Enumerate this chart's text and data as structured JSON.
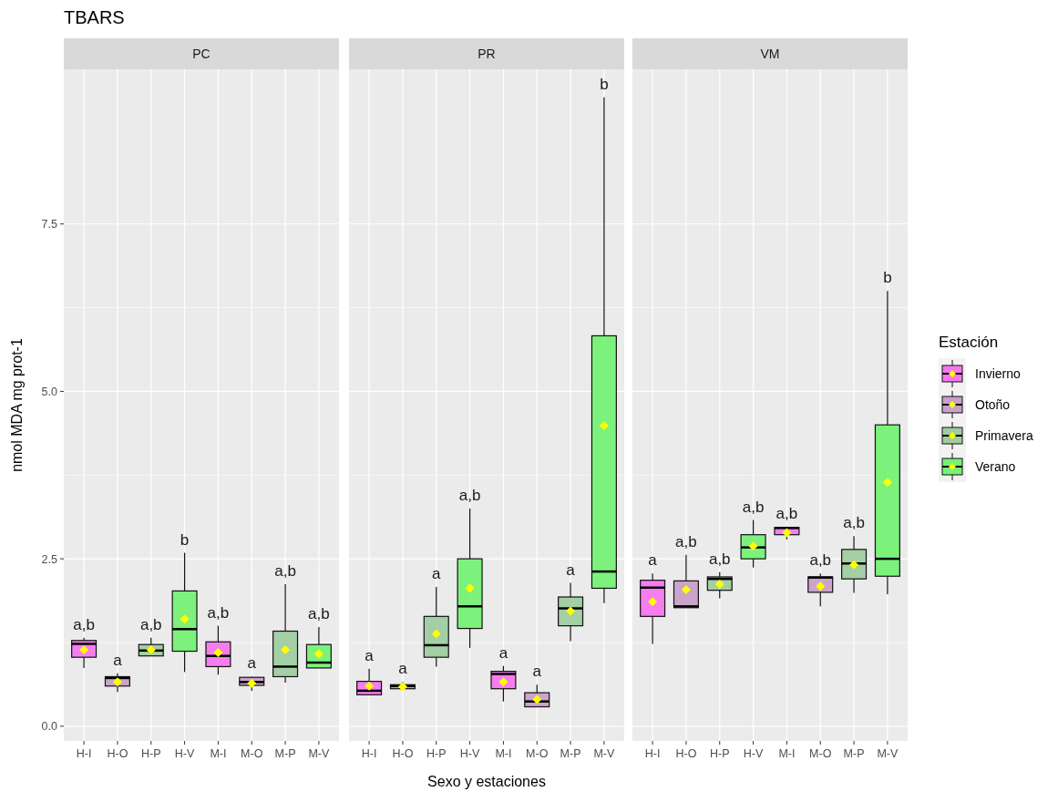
{
  "chart_data": [
    {
      "type": "box",
      "title": "TBARS",
      "subtitle": "PC",
      "ylabel": "nmol MDA mg prot-1",
      "categories": [
        "H-I",
        "H-O",
        "H-P",
        "H-V",
        "M-I",
        "M-O",
        "M-P",
        "M-V"
      ],
      "ylim": [
        -0.22,
        9.81
      ],
      "yticks": [
        {
          "value": 0,
          "label": "0.0"
        },
        {
          "value": 2.5,
          "label": "2.5"
        },
        {
          "value": 5,
          "label": "5.0"
        },
        {
          "value": 7.5,
          "label": "7.5"
        }
      ],
      "grid": true,
      "legend": false,
      "series": [
        {
          "color": "#f577ef",
          "boxes": [
            {
              "low": 0.87,
              "q1": 1.03,
              "median": 1.23,
              "q3": 1.28,
              "high": 1.32,
              "mean": 1.14
            },
            null,
            null,
            null,
            {
              "low": 0.77,
              "q1": 0.89,
              "median": 1.05,
              "q3": 1.26,
              "high": 1.5,
              "mean": 1.1
            },
            null,
            null,
            null
          ]
        },
        {
          "color": "#c9a0c9",
          "boxes": [
            null,
            {
              "low": 0.51,
              "q1": 0.6,
              "median": 0.72,
              "q3": 0.74,
              "high": 0.79,
              "mean": 0.66
            },
            null,
            null,
            null,
            {
              "low": 0.53,
              "q1": 0.61,
              "median": 0.66,
              "q3": 0.73,
              "high": 0.74,
              "mean": 0.64
            },
            null,
            null
          ]
        },
        {
          "color": "#a0cca0",
          "boxes": [
            null,
            null,
            {
              "low": 1.01,
              "q1": 1.05,
              "median": 1.13,
              "q3": 1.22,
              "high": 1.32,
              "mean": 1.14
            },
            null,
            null,
            null,
            {
              "low": 0.65,
              "q1": 0.74,
              "median": 0.89,
              "q3": 1.42,
              "high": 2.12,
              "mean": 1.14
            },
            null
          ]
        },
        {
          "color": "#76f276",
          "boxes": [
            null,
            null,
            null,
            {
              "low": 0.81,
              "q1": 1.12,
              "median": 1.45,
              "q3": 2.02,
              "high": 2.59,
              "mean": 1.6
            },
            null,
            null,
            null,
            {
              "low": 0.84,
              "q1": 0.87,
              "median": 0.95,
              "q3": 1.22,
              "high": 1.48,
              "mean": 1.08
            }
          ]
        }
      ],
      "annotations": [
        "a,b",
        "a",
        "a,b",
        "b",
        "a,b",
        "a",
        "a,b",
        "a,b"
      ]
    },
    {
      "type": "box",
      "subtitle": "PR",
      "xlabel": "Sexo y estaciones",
      "categories": [
        "H-I",
        "H-O",
        "H-P",
        "H-V",
        "M-I",
        "M-O",
        "M-P",
        "M-V"
      ],
      "ylim": [
        -0.22,
        9.81
      ],
      "yticks": [
        0,
        2.5,
        5,
        7.5
      ],
      "grid": true,
      "legend": false,
      "tick_labels": "x",
      "series": [
        {
          "color": "#f577ef",
          "boxes": [
            {
              "low": 0.45,
              "q1": 0.47,
              "median": 0.53,
              "q3": 0.67,
              "high": 0.86,
              "mean": 0.6
            },
            null,
            null,
            null,
            {
              "low": 0.37,
              "q1": 0.56,
              "median": 0.78,
              "q3": 0.82,
              "high": 0.9,
              "mean": 0.66
            },
            null,
            null,
            null
          ]
        },
        {
          "color": "#c9a0c9",
          "boxes": [
            null,
            {
              "low": 0.55,
              "q1": 0.56,
              "median": 0.6,
              "q3": 0.62,
              "high": 0.66,
              "mean": 0.59
            },
            null,
            null,
            null,
            {
              "low": 0.25,
              "q1": 0.29,
              "median": 0.37,
              "q3": 0.5,
              "high": 0.62,
              "mean": 0.4
            },
            null,
            null
          ]
        },
        {
          "color": "#a0cca0",
          "boxes": [
            null,
            null,
            {
              "low": 0.89,
              "q1": 1.03,
              "median": 1.21,
              "q3": 1.64,
              "high": 2.08,
              "mean": 1.38
            },
            null,
            null,
            null,
            {
              "low": 1.27,
              "q1": 1.5,
              "median": 1.76,
              "q3": 1.93,
              "high": 2.14,
              "mean": 1.72
            },
            null
          ]
        },
        {
          "color": "#76f276",
          "boxes": [
            null,
            null,
            null,
            {
              "low": 1.17,
              "q1": 1.46,
              "median": 1.79,
              "q3": 2.5,
              "high": 3.25,
              "mean": 2.06
            },
            null,
            null,
            null,
            {
              "low": 1.84,
              "q1": 2.06,
              "median": 2.31,
              "q3": 5.83,
              "high": 9.39,
              "mean": 4.49
            }
          ]
        }
      ],
      "annotations": [
        "a",
        "a",
        "a",
        "a,b",
        "a",
        "a",
        "a",
        "b"
      ]
    },
    {
      "type": "box",
      "subtitle": "VM",
      "legend_title": "Estación",
      "legend": "right",
      "categories": [
        "H-I",
        "H-O",
        "H-P",
        "H-V",
        "M-I",
        "M-O",
        "M-P",
        "M-V"
      ],
      "ylim": [
        -0.22,
        9.81
      ],
      "yticks": [
        0,
        2.5,
        5,
        7.5
      ],
      "grid": true,
      "tick_labels": "x",
      "series": [
        {
          "name": "Invierno",
          "color": "#f577ef",
          "boxes": [
            {
              "low": 1.23,
              "q1": 1.64,
              "median": 2.07,
              "q3": 2.18,
              "high": 2.28,
              "mean": 1.86
            },
            null,
            null,
            null,
            {
              "low": 2.79,
              "q1": 2.86,
              "median": 2.96,
              "q3": 2.97,
              "high": 2.98,
              "mean": 2.89
            },
            null,
            null,
            null
          ]
        },
        {
          "name": "Otoño",
          "color": "#c9a0c9",
          "boxes": [
            null,
            {
              "low": 1.77,
              "q1": 1.77,
              "median": 1.79,
              "q3": 2.17,
              "high": 2.56,
              "mean": 2.04
            },
            null,
            null,
            null,
            {
              "low": 1.79,
              "q1": 2.0,
              "median": 2.22,
              "q3": 2.23,
              "high": 2.28,
              "mean": 2.09
            },
            null,
            null
          ]
        },
        {
          "name": "Primavera",
          "color": "#a0cca0",
          "boxes": [
            null,
            null,
            {
              "low": 1.91,
              "q1": 2.03,
              "median": 2.2,
              "q3": 2.23,
              "high": 2.3,
              "mean": 2.12
            },
            null,
            null,
            null,
            {
              "low": 1.99,
              "q1": 2.2,
              "median": 2.43,
              "q3": 2.64,
              "high": 2.84,
              "mean": 2.41
            },
            null
          ]
        },
        {
          "name": "Verano",
          "color": "#76f276",
          "boxes": [
            null,
            null,
            null,
            {
              "low": 2.37,
              "q1": 2.5,
              "median": 2.67,
              "q3": 2.86,
              "high": 3.08,
              "mean": 2.69
            },
            null,
            null,
            null,
            {
              "low": 1.97,
              "q1": 2.24,
              "median": 2.5,
              "q3": 4.5,
              "high": 6.5,
              "mean": 3.64
            }
          ]
        }
      ],
      "annotations": [
        "a",
        "a,b",
        "a,b",
        "a,b",
        "a,b",
        "a,b",
        "a,b",
        "b"
      ]
    }
  ]
}
